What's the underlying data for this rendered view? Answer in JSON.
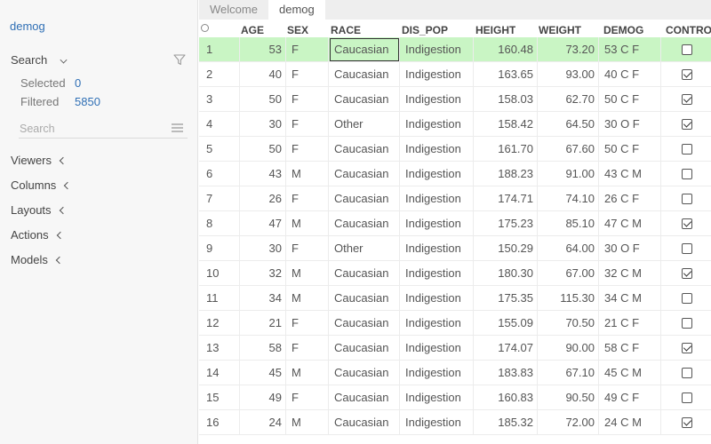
{
  "sidebar": {
    "title": "demog",
    "search_label": "Search",
    "selected_label": "Selected",
    "selected_value": "0",
    "filtered_label": "Filtered",
    "filtered_value": "5850",
    "search_placeholder": "Search",
    "sections": [
      {
        "label": "Viewers"
      },
      {
        "label": "Columns"
      },
      {
        "label": "Layouts"
      },
      {
        "label": "Actions"
      },
      {
        "label": "Models"
      }
    ]
  },
  "tabs": [
    {
      "label": "Welcome",
      "active": false
    },
    {
      "label": "demog",
      "active": true
    }
  ],
  "grid": {
    "columns": [
      "AGE",
      "SEX",
      "RACE",
      "DIS_POP",
      "HEIGHT",
      "WEIGHT",
      "DEMOG",
      "CONTROL"
    ],
    "rows": [
      {
        "idx": "1",
        "age": "53",
        "sex": "F",
        "race": "Caucasian",
        "dis_pop": "Indigestion",
        "height": "160.48",
        "weight": "73.20",
        "demog": "53 C F",
        "control": false
      },
      {
        "idx": "2",
        "age": "40",
        "sex": "F",
        "race": "Caucasian",
        "dis_pop": "Indigestion",
        "height": "163.65",
        "weight": "93.00",
        "demog": "40 C F",
        "control": true
      },
      {
        "idx": "3",
        "age": "50",
        "sex": "F",
        "race": "Caucasian",
        "dis_pop": "Indigestion",
        "height": "158.03",
        "weight": "62.70",
        "demog": "50 C F",
        "control": true
      },
      {
        "idx": "4",
        "age": "30",
        "sex": "F",
        "race": "Other",
        "dis_pop": "Indigestion",
        "height": "158.42",
        "weight": "64.50",
        "demog": "30 O F",
        "control": true
      },
      {
        "idx": "5",
        "age": "50",
        "sex": "F",
        "race": "Caucasian",
        "dis_pop": "Indigestion",
        "height": "161.70",
        "weight": "67.60",
        "demog": "50 C F",
        "control": false
      },
      {
        "idx": "6",
        "age": "43",
        "sex": "M",
        "race": "Caucasian",
        "dis_pop": "Indigestion",
        "height": "188.23",
        "weight": "91.00",
        "demog": "43 C M",
        "control": false
      },
      {
        "idx": "7",
        "age": "26",
        "sex": "F",
        "race": "Caucasian",
        "dis_pop": "Indigestion",
        "height": "174.71",
        "weight": "74.10",
        "demog": "26 C F",
        "control": false
      },
      {
        "idx": "8",
        "age": "47",
        "sex": "M",
        "race": "Caucasian",
        "dis_pop": "Indigestion",
        "height": "175.23",
        "weight": "85.10",
        "demog": "47 C M",
        "control": true
      },
      {
        "idx": "9",
        "age": "30",
        "sex": "F",
        "race": "Other",
        "dis_pop": "Indigestion",
        "height": "150.29",
        "weight": "64.00",
        "demog": "30 O F",
        "control": false
      },
      {
        "idx": "10",
        "age": "32",
        "sex": "M",
        "race": "Caucasian",
        "dis_pop": "Indigestion",
        "height": "180.30",
        "weight": "67.00",
        "demog": "32 C M",
        "control": true
      },
      {
        "idx": "11",
        "age": "34",
        "sex": "M",
        "race": "Caucasian",
        "dis_pop": "Indigestion",
        "height": "175.35",
        "weight": "115.30",
        "demog": "34 C M",
        "control": false
      },
      {
        "idx": "12",
        "age": "21",
        "sex": "F",
        "race": "Caucasian",
        "dis_pop": "Indigestion",
        "height": "155.09",
        "weight": "70.50",
        "demog": "21 C F",
        "control": false
      },
      {
        "idx": "13",
        "age": "58",
        "sex": "F",
        "race": "Caucasian",
        "dis_pop": "Indigestion",
        "height": "174.07",
        "weight": "90.00",
        "demog": "58 C F",
        "control": true
      },
      {
        "idx": "14",
        "age": "45",
        "sex": "M",
        "race": "Caucasian",
        "dis_pop": "Indigestion",
        "height": "183.83",
        "weight": "67.10",
        "demog": "45 C M",
        "control": false
      },
      {
        "idx": "15",
        "age": "49",
        "sex": "F",
        "race": "Caucasian",
        "dis_pop": "Indigestion",
        "height": "160.83",
        "weight": "90.50",
        "demog": "49 C F",
        "control": false
      },
      {
        "idx": "16",
        "age": "24",
        "sex": "M",
        "race": "Caucasian",
        "dis_pop": "Indigestion",
        "height": "185.32",
        "weight": "72.00",
        "demog": "24 C M",
        "control": true
      }
    ]
  },
  "colors": {
    "accent": "#2f6fb5",
    "current_row": "#c9f5c4",
    "sidebar_bg": "#f7f7f7"
  }
}
